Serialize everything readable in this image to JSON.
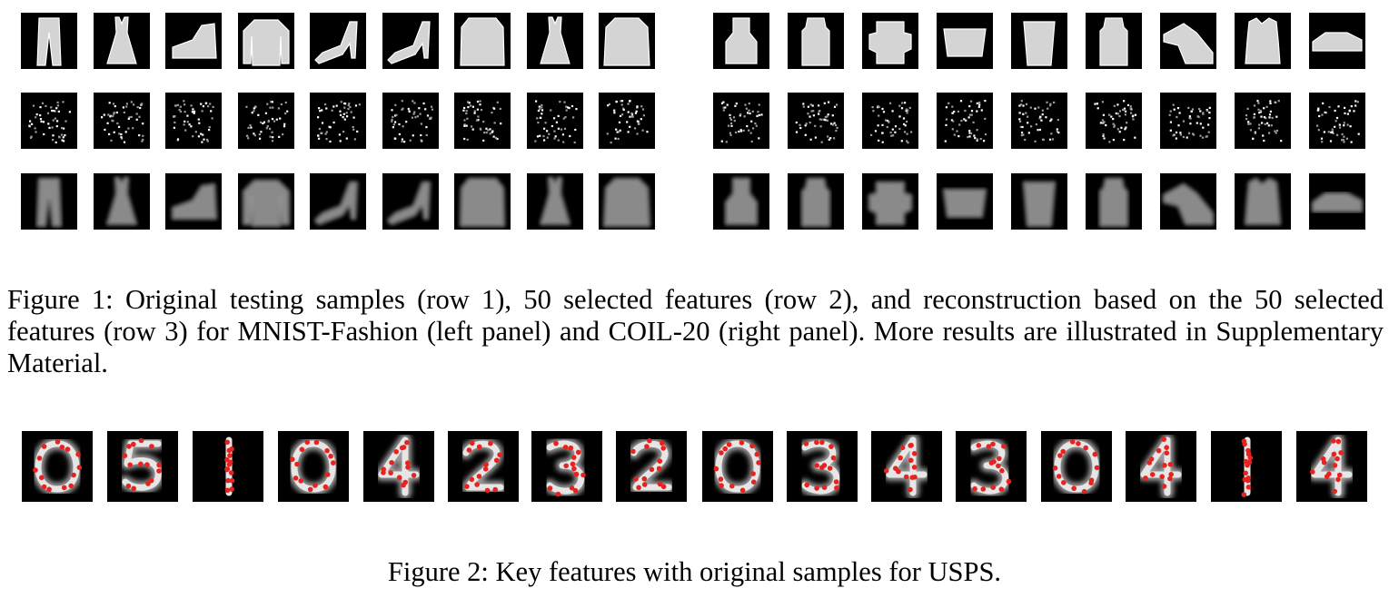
{
  "figure1": {
    "caption_prefix": "Figure 1:",
    "caption_body": "Original testing samples (row 1), 50 selected features (row 2), and reconstruction based on the 50 selected features (row 3) for MNIST-Fashion (left panel) and COIL-20 (right panel). More results are illustrated in Supplementary Material.",
    "left_panel": {
      "dataset": "MNIST-Fashion",
      "items": [
        "trousers",
        "dress",
        "sneaker",
        "pullover",
        "sandal",
        "sandal",
        "coat",
        "dress",
        "shirt"
      ]
    },
    "right_panel": {
      "dataset": "COIL-20",
      "items": [
        "toy",
        "bottle",
        "cup-stack",
        "tub",
        "cup",
        "bottle",
        "toy-duck",
        "cat-figure",
        "car"
      ]
    }
  },
  "figure2": {
    "caption": "Figure 2: Key features with original samples for USPS.",
    "digits": [
      "0",
      "5",
      "1",
      "0",
      "4",
      "2",
      "3",
      "2",
      "0",
      "3",
      "4",
      "3",
      "0",
      "4",
      "1",
      "4"
    ],
    "marker_color": "#e8231f"
  }
}
